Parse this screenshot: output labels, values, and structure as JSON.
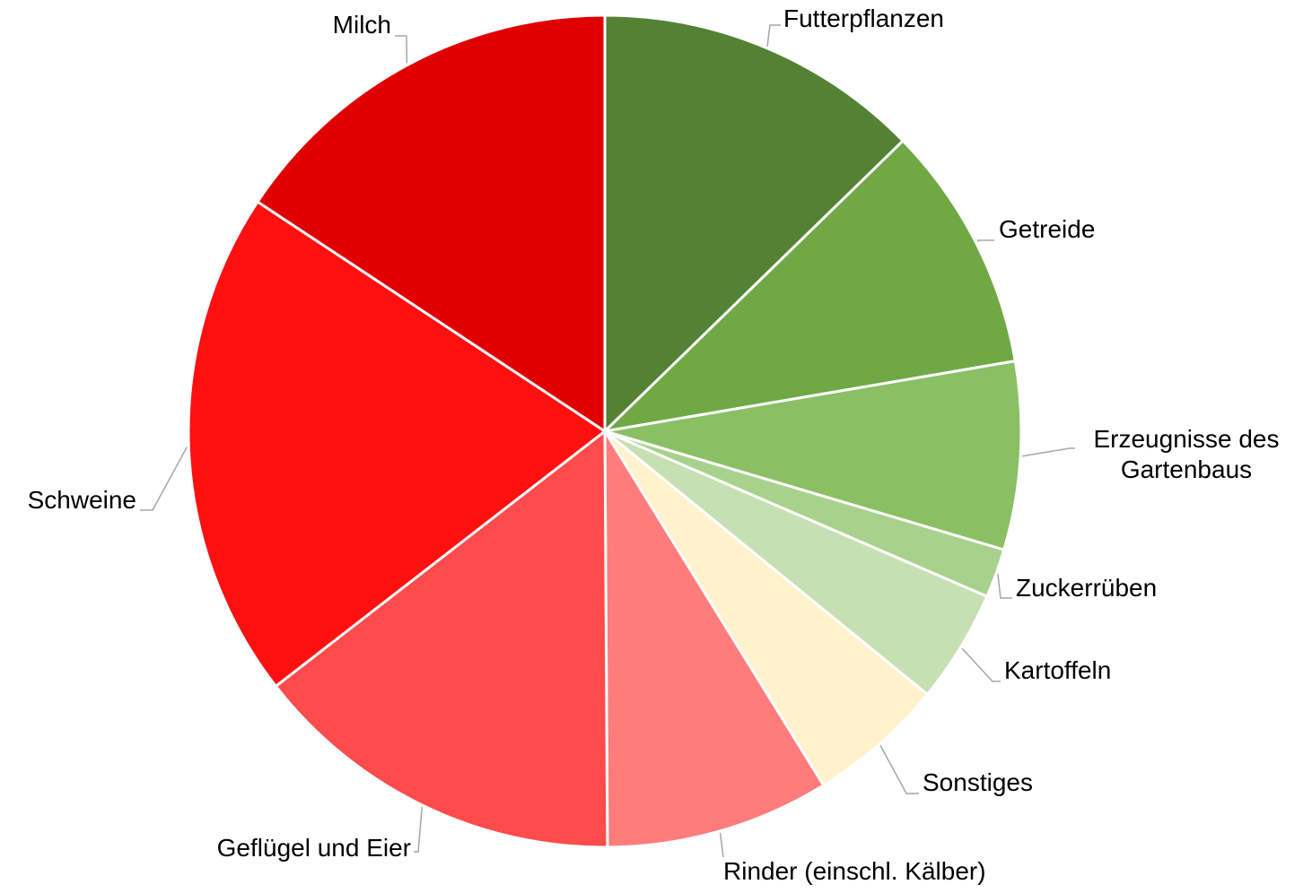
{
  "chart_data": {
    "type": "pie",
    "categories": [
      "Futterpflanzen",
      "Getreide",
      "Erzeugnisse des Gartenbaus",
      "Zuckerrüben",
      "Kartoffeln",
      "Sonstiges",
      "Rinder (einschl. Kälber)",
      "Geflügel und Eier",
      "Schweine",
      "Milch"
    ],
    "values": [
      12.7,
      9.6,
      7.3,
      1.9,
      4.4,
      5.3,
      8.7,
      14.6,
      19.8,
      15.7
    ],
    "colors": [
      "#548235",
      "#70a845",
      "#8bbf63",
      "#a9d18e",
      "#c6e0b4",
      "#fff2cc",
      "#ff7c7c",
      "#ff4b4b",
      "#ff1010",
      "#e00000"
    ]
  }
}
